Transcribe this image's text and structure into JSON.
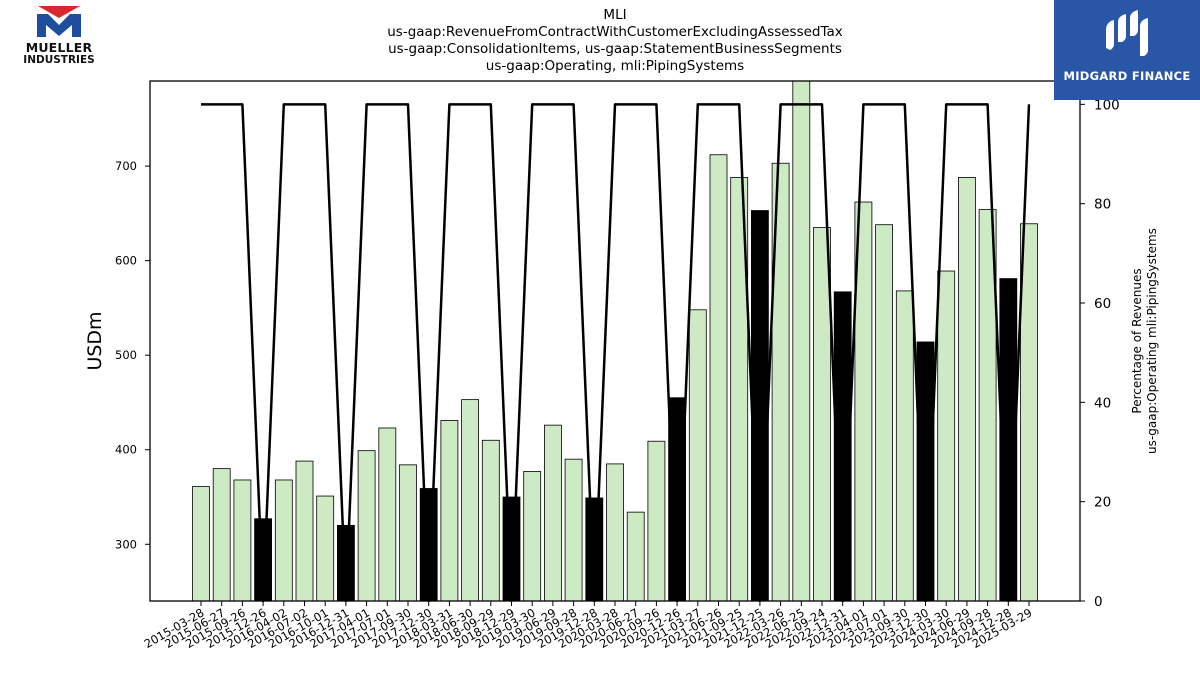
{
  "title": {
    "line1": "MLI",
    "line2": "us-gaap:RevenueFromContractWithCustomerExcludingAssessedTax",
    "line3": "us-gaap:ConsolidationItems, us-gaap:StatementBusinessSegments",
    "line4": "us-gaap:Operating, mli:PipingSystems"
  },
  "logos": {
    "left_line1": "MUELLER",
    "left_line2": "INDUSTRIES",
    "right_text": "MIDGARD FINANCE"
  },
  "colors": {
    "bar_normal": "#cdeac5",
    "bar_highlight": "#000000",
    "line": "#000000",
    "logo_red": "#d7282f",
    "logo_blue": "#1f4e9c",
    "brand_blue": "#2a56a8"
  },
  "chart_data": {
    "type": "bar",
    "title": "MLI",
    "ylabel": "USDm",
    "ylabel_right_line1": "Percentage of Revenues",
    "ylabel_right_line2": "us-gaap:Operating mli:PipingSystems",
    "ylim": [
      240,
      790
    ],
    "yticks": [
      300,
      400,
      500,
      600,
      700
    ],
    "ylim_right": [
      0,
      104.7
    ],
    "yticks_right": [
      0,
      20,
      40,
      60,
      80,
      100
    ],
    "grid": false,
    "categories": [
      "2015-03-28",
      "2015-06-27",
      "2015-09-26",
      "2015-12-26",
      "2016-04-02",
      "2016-07-02",
      "2016-10-01",
      "2016-12-31",
      "2017-04-01",
      "2017-07-01",
      "2017-09-30",
      "2017-12-30",
      "2018-03-31",
      "2018-06-30",
      "2018-09-29",
      "2018-12-29",
      "2019-03-30",
      "2019-06-29",
      "2019-09-28",
      "2019-12-28",
      "2020-03-28",
      "2020-06-27",
      "2020-09-26",
      "2020-12-26",
      "2021-03-27",
      "2021-06-26",
      "2021-09-25",
      "2021-12-25",
      "2022-03-26",
      "2022-06-25",
      "2022-09-24",
      "2022-12-31",
      "2023-04-01",
      "2023-07-01",
      "2023-09-30",
      "2023-12-30",
      "2024-03-30",
      "2024-06-29",
      "2024-09-28",
      "2024-12-28",
      "2025-03-29"
    ],
    "series": [
      {
        "type": "bar",
        "values": [
          361,
          380,
          368,
          327,
          368,
          388,
          351,
          320,
          399,
          423,
          384,
          359,
          431,
          453,
          410,
          350,
          377,
          426,
          390,
          349,
          385,
          334,
          409,
          455,
          548,
          712,
          688,
          653,
          703,
          795,
          635,
          567,
          662,
          638,
          568,
          514,
          589,
          688,
          654,
          581,
          639
        ],
        "highlight": [
          false,
          false,
          false,
          true,
          false,
          false,
          false,
          true,
          false,
          false,
          false,
          true,
          false,
          false,
          false,
          true,
          false,
          false,
          false,
          true,
          false,
          false,
          false,
          true,
          false,
          false,
          false,
          true,
          false,
          false,
          false,
          true,
          false,
          false,
          false,
          true,
          false,
          false,
          false,
          true,
          false
        ]
      },
      {
        "type": "line",
        "axis": "right",
        "values": [
          100,
          100,
          100,
          0,
          100,
          100,
          100,
          0,
          100,
          100,
          100,
          0,
          100,
          100,
          100,
          0,
          100,
          100,
          100,
          0,
          100,
          100,
          100,
          0,
          100,
          100,
          100,
          0,
          100,
          100,
          100,
          0,
          100,
          100,
          100,
          0,
          100,
          100,
          100,
          0,
          100
        ]
      }
    ]
  }
}
